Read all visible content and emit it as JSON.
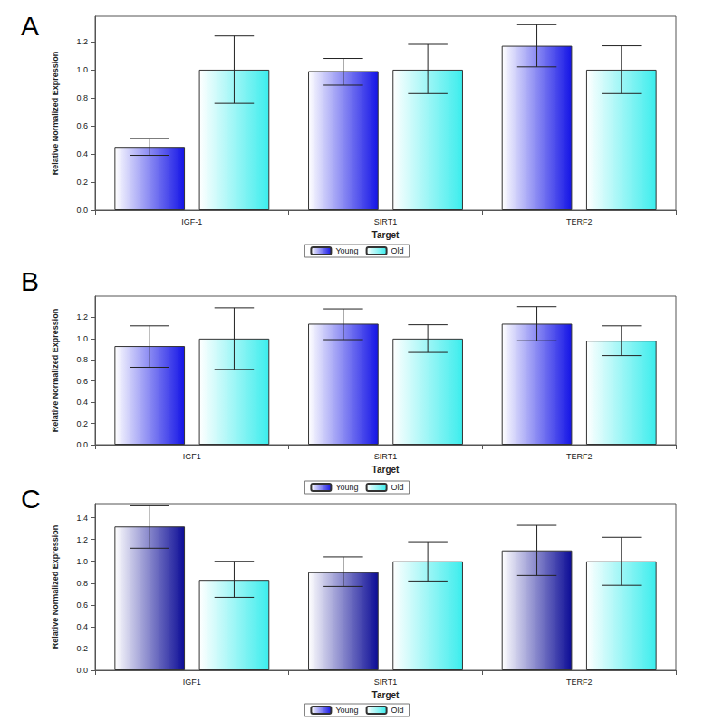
{
  "chart_data": [
    {
      "type": "bar",
      "title": "A",
      "x_label": "Target",
      "y_label": "Relative Normalized Expression",
      "categories": [
        "IGF-1",
        "SIRT1",
        "TERF2"
      ],
      "series": [
        {
          "name": "Young",
          "color": "#1414e6",
          "values": [
            0.45,
            0.99,
            1.17
          ],
          "error_low": [
            0.39,
            0.89,
            1.02
          ],
          "error_high": [
            0.51,
            1.08,
            1.32
          ]
        },
        {
          "name": "Old",
          "color": "#3ceded",
          "values": [
            1.0,
            1.0,
            1.0
          ],
          "error_low": [
            0.76,
            0.83,
            0.83
          ],
          "error_high": [
            1.24,
            1.18,
            1.17
          ]
        }
      ],
      "ylim": [
        0,
        1.38
      ],
      "yticks": [
        {
          "value": 0,
          "label": "0.0"
        },
        0.2,
        0.4,
        0.6,
        0.8,
        {
          "value": 1,
          "label": "1.0"
        },
        1.2
      ],
      "legend": "bottom",
      "grid": false
    },
    {
      "type": "bar",
      "title": "B",
      "x_label": "Target",
      "y_label": "Relative Normalized Expression",
      "categories": [
        "IGF1",
        "SIRT1",
        "TERF2"
      ],
      "series": [
        {
          "name": "Young",
          "color": "#1414e6",
          "values": [
            0.93,
            1.14,
            1.14
          ],
          "error_low": [
            0.73,
            0.99,
            0.98
          ],
          "error_high": [
            1.12,
            1.28,
            1.3
          ]
        },
        {
          "name": "Old",
          "color": "#3ceded",
          "values": [
            1.0,
            1.0,
            0.98
          ],
          "error_low": [
            0.71,
            0.87,
            0.84
          ],
          "error_high": [
            1.29,
            1.13,
            1.12
          ]
        }
      ],
      "ylim": [
        0,
        1.4
      ],
      "yticks": [
        {
          "value": 0,
          "label": "0.0"
        },
        0.2,
        0.4,
        0.6,
        0.8,
        {
          "value": 1,
          "label": "1.0"
        },
        1.2
      ],
      "legend": "bottom",
      "grid": false
    },
    {
      "type": "bar",
      "title": "C",
      "x_label": "Target",
      "y_label": "Relative Normalized Expression",
      "categories": [
        "IGF1",
        "SIRT1",
        "TERF2"
      ],
      "series": [
        {
          "name": "Young",
          "color": "#0c0c96",
          "values": [
            1.32,
            0.9,
            1.1
          ],
          "error_low": [
            1.12,
            0.77,
            0.87
          ],
          "error_high": [
            1.51,
            1.04,
            1.33
          ]
        },
        {
          "name": "Old",
          "color": "#3ceded",
          "values": [
            0.83,
            1.0,
            1.0
          ],
          "error_low": [
            0.67,
            0.82,
            0.78
          ],
          "error_high": [
            1.0,
            1.18,
            1.22
          ]
        }
      ],
      "ylim": [
        0,
        1.53
      ],
      "yticks": [
        {
          "value": 0,
          "label": "0.0"
        },
        0.2,
        0.4,
        0.6,
        0.8,
        {
          "value": 1,
          "label": "1.0"
        },
        1.2,
        1.4
      ],
      "legend": "bottom",
      "grid": false
    }
  ]
}
